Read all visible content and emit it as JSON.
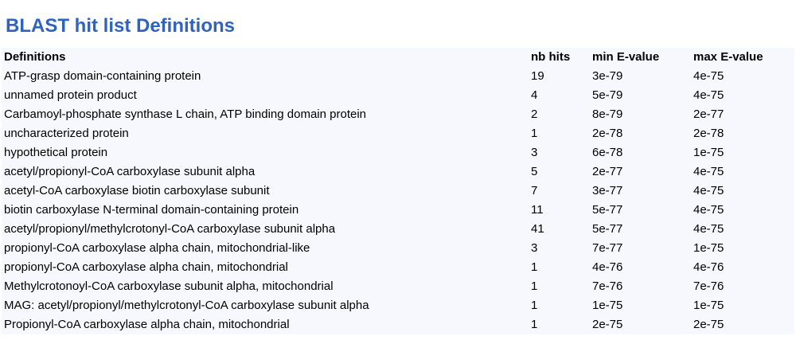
{
  "title": "BLAST hit list Definitions",
  "table": {
    "headers": [
      "Definitions",
      "nb hits",
      "min E-value",
      "max E-value"
    ],
    "rows": [
      [
        "ATP-grasp domain-containing protein",
        "19",
        "3e-79",
        "4e-75"
      ],
      [
        "unnamed protein product",
        "4",
        "5e-79",
        "4e-75"
      ],
      [
        "Carbamoyl-phosphate synthase L chain, ATP binding domain protein",
        "2",
        "8e-79",
        "2e-77"
      ],
      [
        "uncharacterized protein",
        "1",
        "2e-78",
        "2e-78"
      ],
      [
        "hypothetical protein",
        "3",
        "6e-78",
        "1e-75"
      ],
      [
        "acetyl/propionyl-CoA carboxylase subunit alpha",
        "5",
        "2e-77",
        "4e-75"
      ],
      [
        "acetyl-CoA carboxylase biotin carboxylase subunit",
        "7",
        "3e-77",
        "4e-75"
      ],
      [
        "biotin carboxylase N-terminal domain-containing protein",
        "11",
        "5e-77",
        "4e-75"
      ],
      [
        "acetyl/propionyl/methylcrotonyl-CoA carboxylase subunit alpha",
        "41",
        "5e-77",
        "4e-75"
      ],
      [
        "propionyl-CoA carboxylase alpha chain, mitochondrial-like",
        "3",
        "7e-77",
        "1e-75"
      ],
      [
        "propionyl-CoA carboxylase alpha chain, mitochondrial",
        "1",
        "4e-76",
        "4e-76"
      ],
      [
        "Methylcrotonoyl-CoA carboxylase subunit alpha, mitochondrial",
        "1",
        "7e-76",
        "7e-76"
      ],
      [
        "MAG: acetyl/propionyl/methylcrotonyl-CoA carboxylase subunit alpha",
        "1",
        "1e-75",
        "1e-75"
      ],
      [
        "Propionyl-CoA carboxylase alpha chain, mitochondrial",
        "1",
        "2e-75",
        "2e-75"
      ]
    ]
  },
  "colors": {
    "title": "#2f63be",
    "table_background": "#f6f8fe",
    "text": "#000000"
  }
}
